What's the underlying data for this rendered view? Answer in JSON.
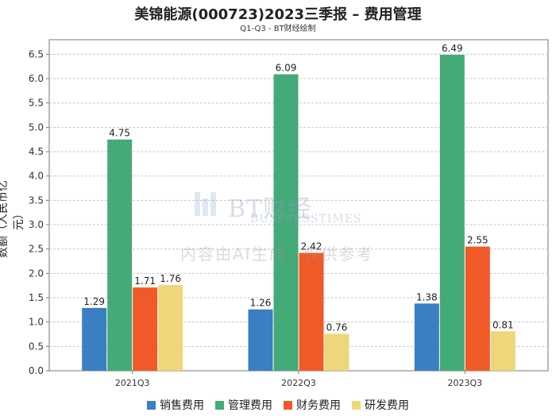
{
  "chart_data": {
    "type": "bar",
    "title": "美锦能源(000723)2023三季报 – 费用管理",
    "subtitle": "Q1-Q3 - BT财经绘制",
    "ylabel": "数额（人民币亿元）",
    "xlabel": "",
    "categories": [
      "2021Q3",
      "2022Q3",
      "2023Q3"
    ],
    "ylim": [
      0,
      6.8
    ],
    "yticks": [
      "0.0",
      "0.5",
      "1.0",
      "1.5",
      "2.0",
      "2.5",
      "3.0",
      "3.5",
      "4.0",
      "4.5",
      "5.0",
      "5.5",
      "6.0",
      "6.5"
    ],
    "grid": true,
    "legend_position": "bottom",
    "series": [
      {
        "name": "销售费用",
        "color": "#3a7fc1",
        "values": [
          1.29,
          1.26,
          1.38
        ],
        "labels": [
          "1.29",
          "1.26",
          "1.38"
        ]
      },
      {
        "name": "管理费用",
        "color": "#44aa77",
        "values": [
          4.75,
          6.09,
          6.49
        ],
        "labels": [
          "4.75",
          "6.09",
          "6.49"
        ]
      },
      {
        "name": "财务费用",
        "color": "#f05a28",
        "values": [
          1.71,
          2.42,
          2.55
        ],
        "labels": [
          "1.71",
          "2.42",
          "2.55"
        ]
      },
      {
        "name": "研发费用",
        "color": "#eed67a",
        "values": [
          1.76,
          0.76,
          0.81
        ],
        "labels": [
          "1.76",
          "0.76",
          "0.81"
        ]
      }
    ]
  },
  "watermark": {
    "brand": "BT财经",
    "brand_sub": "BUSINESSTIMES",
    "note": "内容由AI生成，仅供参考"
  }
}
